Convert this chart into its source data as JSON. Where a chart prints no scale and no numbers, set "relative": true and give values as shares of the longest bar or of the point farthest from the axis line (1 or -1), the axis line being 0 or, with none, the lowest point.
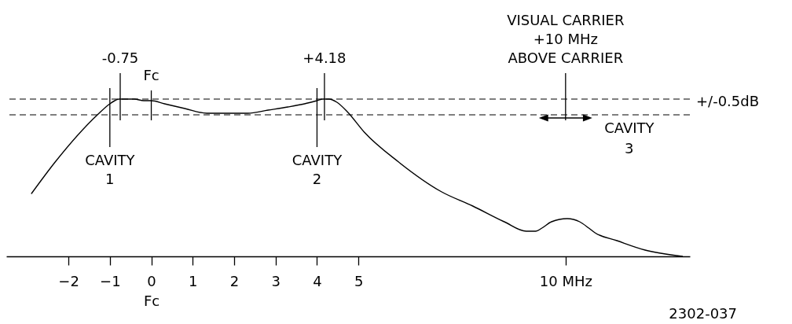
{
  "chart_data": {
    "type": "line",
    "relative": true,
    "x": [
      -2.89,
      -2.32,
      -1.3,
      -1.0,
      -0.88,
      -0.78,
      -0.68,
      -0.41,
      -0.18,
      0,
      0.32,
      0.81,
      1.34,
      1.88,
      2.33,
      2.82,
      3.3,
      3.7,
      4.0,
      4.14,
      4.29,
      4.48,
      4.73,
      5.14,
      5.97,
      7.01,
      7.76,
      8.52,
      9.05,
      9.28,
      9.43,
      9.66,
      10.04,
      10.34,
      10.56,
      10.71,
      11.24,
      11.92,
      12.82
    ],
    "series": [
      {
        "color": "#000000",
        "values": [
          0.4,
          0.6,
          0.9,
          0.97,
          0.99,
          1.0,
          1.0,
          1.0,
          0.99,
          0.99,
          0.97,
          0.94,
          0.91,
          0.91,
          0.91,
          0.93,
          0.95,
          0.97,
          0.99,
          1.0,
          1.0,
          0.98,
          0.92,
          0.79,
          0.6,
          0.41,
          0.32,
          0.22,
          0.16,
          0.16,
          0.18,
          0.22,
          0.24,
          0.22,
          0.18,
          0.15,
          0.1,
          0.04,
          0
        ]
      }
    ],
    "xlim": [
      -3.5,
      13
    ],
    "xticks": [
      -2,
      -1,
      {
        "value": 0,
        "label": "0\nFc"
      },
      1,
      2,
      3,
      4,
      5,
      {
        "value": 10,
        "label": "10 MHz"
      }
    ],
    "ref_lines": [
      {
        "axis": "y",
        "value": 1.0,
        "label": "+/-0.5dB",
        "line_style": "dashed"
      },
      {
        "axis": "y",
        "value": 0.9,
        "line_style": "dashed"
      },
      {
        "axis": "x",
        "value": -1,
        "label": "CAVITY\n1"
      },
      {
        "axis": "x",
        "value": -0.75,
        "label": "-0.75"
      },
      {
        "axis": "x",
        "value": 0,
        "label": "Fc"
      },
      {
        "axis": "x",
        "value": 4,
        "label": "CAVITY\n2"
      },
      {
        "axis": "x",
        "value": 4.18,
        "label": "+4.18"
      },
      {
        "axis": "x",
        "value": 10,
        "label": "VISUAL CARRIER\n+10 MHz\nABOVE CARRIER"
      }
    ],
    "annotations": [
      {
        "text": "CAVITY\n3",
        "x": 10,
        "y": 0.88
      },
      "2302-037"
    ]
  }
}
